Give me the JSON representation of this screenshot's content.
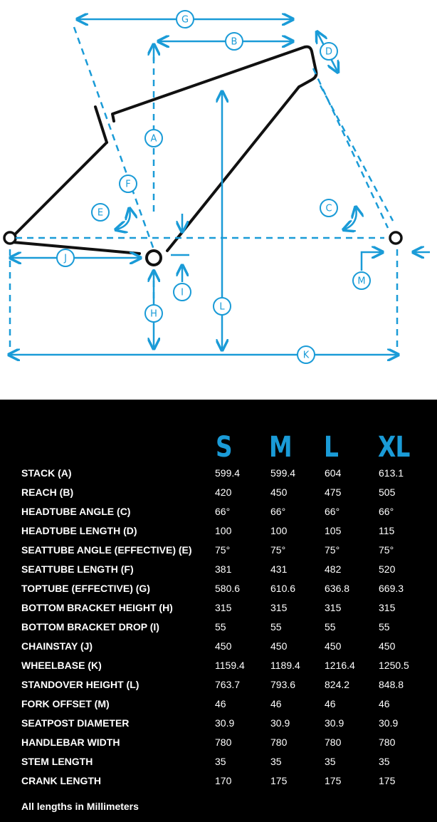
{
  "diagram": {
    "labels": {
      "A": "A",
      "B": "B",
      "C": "C",
      "D": "D",
      "E": "E",
      "F": "F",
      "G": "G",
      "H": "H",
      "I": "I",
      "J": "J",
      "K": "K",
      "L": "L",
      "M": "M"
    },
    "colors": {
      "frame": "#111111",
      "dimension": "#1a9bd7"
    }
  },
  "table": {
    "sizes": [
      "S",
      "M",
      "L",
      "XL"
    ],
    "rows": [
      {
        "label": "STACK (A)",
        "values": [
          "599.4",
          "599.4",
          "604",
          "613.1"
        ]
      },
      {
        "label": "REACH (B)",
        "values": [
          "420",
          "450",
          "475",
          "505"
        ]
      },
      {
        "label": "HEADTUBE ANGLE (C)",
        "values": [
          "66°",
          "66°",
          "66°",
          "66°"
        ]
      },
      {
        "label": "HEADTUBE LENGTH (D)",
        "values": [
          "100",
          "100",
          "105",
          "115"
        ]
      },
      {
        "label": "SEATTUBE ANGLE (EFFECTIVE) (E)",
        "values": [
          "75°",
          "75°",
          "75°",
          "75°"
        ]
      },
      {
        "label": "SEATTUBE LENGTH (F)",
        "values": [
          "381",
          "431",
          "482",
          "520"
        ]
      },
      {
        "label": "TOPTUBE (EFFECTIVE) (G)",
        "values": [
          "580.6",
          "610.6",
          "636.8",
          "669.3"
        ]
      },
      {
        "label": "BOTTOM BRACKET HEIGHT (H)",
        "values": [
          "315",
          "315",
          "315",
          "315"
        ]
      },
      {
        "label": "BOTTOM BRACKET DROP (I)",
        "values": [
          "55",
          "55",
          "55",
          "55"
        ]
      },
      {
        "label": "CHAINSTAY (J)",
        "values": [
          "450",
          "450",
          "450",
          "450"
        ]
      },
      {
        "label": "WHEELBASE (K)",
        "values": [
          "1159.4",
          "1189.4",
          "1216.4",
          "1250.5"
        ]
      },
      {
        "label": "STANDOVER HEIGHT (L)",
        "values": [
          "763.7",
          "793.6",
          "824.2",
          "848.8"
        ]
      },
      {
        "label": "FORK OFFSET (M)",
        "values": [
          "46",
          "46",
          "46",
          "46"
        ]
      },
      {
        "label": "SEATPOST DIAMETER",
        "values": [
          "30.9",
          "30.9",
          "30.9",
          "30.9"
        ]
      },
      {
        "label": "HANDLEBAR WIDTH",
        "values": [
          "780",
          "780",
          "780",
          "780"
        ]
      },
      {
        "label": "STEM LENGTH",
        "values": [
          "35",
          "35",
          "35",
          "35"
        ]
      },
      {
        "label": "CRANK LENGTH",
        "values": [
          "170",
          "175",
          "175",
          "175"
        ]
      }
    ],
    "footnote": "All lengths in Millimeters"
  }
}
